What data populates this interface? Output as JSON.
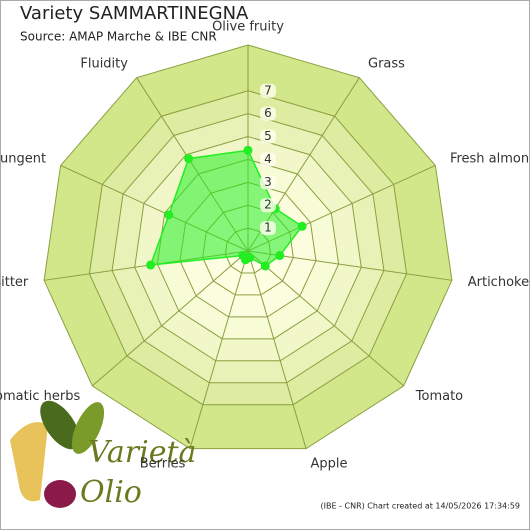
{
  "chart_data": {
    "type": "radar",
    "title": "Variety SAMMARTINEGNA",
    "subtitle": "Source: AMAP Marche & IBE CNR",
    "categories": [
      "Olive fruity",
      "Grass",
      "Fresh almond",
      "Artichoke",
      "Tomato",
      "Apple",
      "Berries",
      "Aromatic herbs",
      "Bitter",
      "Pungent",
      "Fluidity"
    ],
    "series": [
      {
        "name": "SAMMARTINEGNA",
        "color": "#22ee22",
        "values": [
          4.4,
          2.2,
          2.6,
          1.4,
          1.0,
          0.3,
          0.4,
          0.3,
          4.3,
          3.8,
          4.8
        ]
      }
    ],
    "ylim": [
      0,
      9
    ],
    "yticks": [
      1,
      2,
      3,
      4,
      5,
      6,
      7
    ],
    "grid": true,
    "credits": "(IBE - CNR) Chart created at 14/05/2026 17:34:59",
    "logo": [
      "Varietà",
      "Olio"
    ]
  }
}
